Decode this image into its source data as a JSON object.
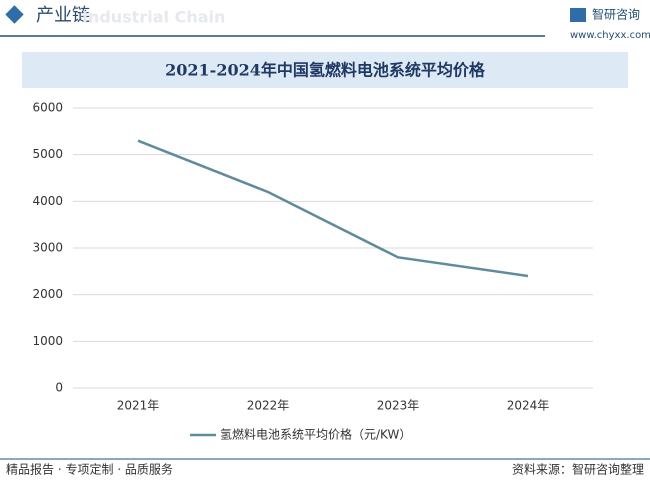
{
  "header": {
    "title": "产业链",
    "subtitle": "Industrial Chain",
    "brand": "智研咨询",
    "url": "www.chyxx.com"
  },
  "chart_data": {
    "type": "line",
    "title": "2021-2024年中国氢燃料电池系统平均价格",
    "categories": [
      "2021年",
      "2022年",
      "2023年",
      "2024年"
    ],
    "series": [
      {
        "name": "氢燃料电池系统平均价格（元/KW）",
        "color": "#5e8c9c",
        "values": [
          5300,
          4200,
          2800,
          2400
        ]
      }
    ],
    "ylim": [
      0,
      6000
    ],
    "yticks": [
      0,
      1000,
      2000,
      3000,
      4000,
      5000,
      6000
    ],
    "grid": true,
    "legend": "bottom"
  },
  "footer": {
    "left": "精品报告 · 专项定制 · 品质服务",
    "right": "资料来源：智研咨询整理"
  }
}
